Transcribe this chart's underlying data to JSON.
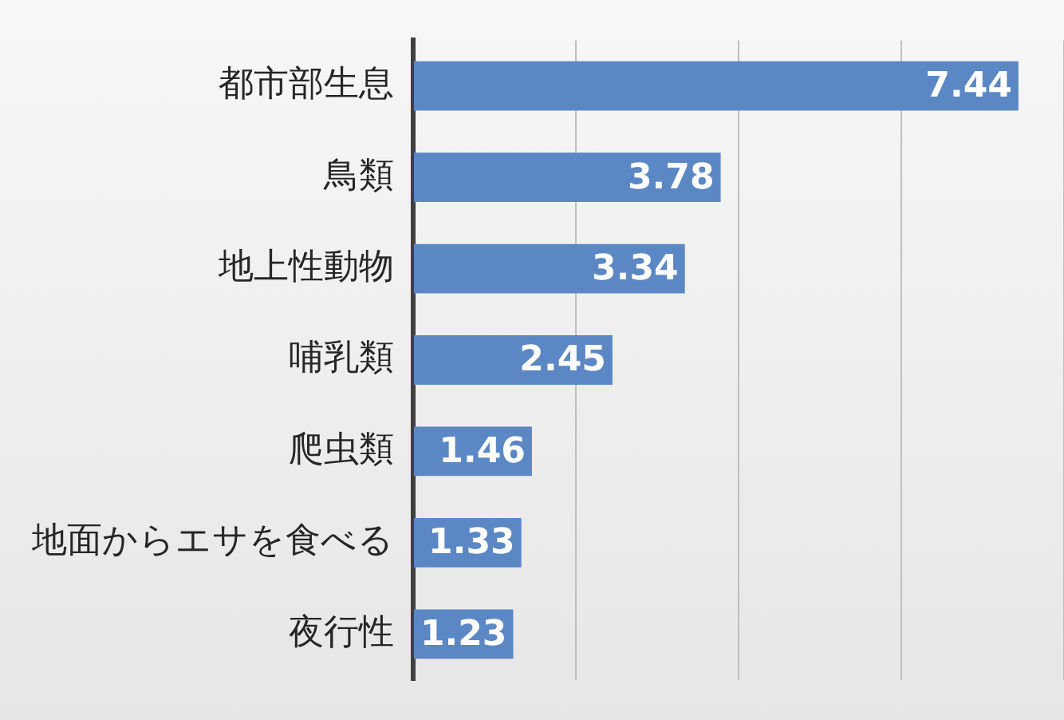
{
  "chart_data": {
    "type": "bar",
    "orientation": "horizontal",
    "categories": [
      "都市部生息",
      "鳥類",
      "地上性動物",
      "哺乳類",
      "爬虫類",
      "地面からエサを食べる",
      "夜行性"
    ],
    "values": [
      7.44,
      3.78,
      3.34,
      2.45,
      1.46,
      1.33,
      1.23
    ],
    "color": "#5b87c5",
    "tick_labels": "y",
    "grid": "x",
    "data_labels": true
  }
}
